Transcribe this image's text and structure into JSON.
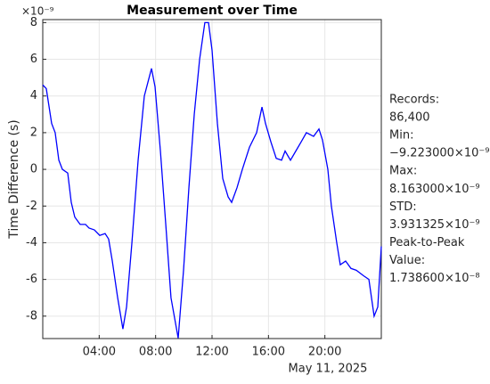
{
  "chart_data": {
    "type": "line",
    "title": "Measurement over Time",
    "ylabel": "Time Difference (s)",
    "y_exponent_label": "×10⁻⁹",
    "x_date_label": "May 11, 2025",
    "x": [
      0,
      0.25,
      0.63,
      0.88,
      1.14,
      1.39,
      1.77,
      2.02,
      2.27,
      2.65,
      3.03,
      3.28,
      3.66,
      4.04,
      4.42,
      4.67,
      4.93,
      5.31,
      5.68,
      5.94,
      6.32,
      6.76,
      7.2,
      7.71,
      7.96,
      8.34,
      8.72,
      9.09,
      9.6,
      9.98,
      10.36,
      10.74,
      11.12,
      11.49,
      11.75,
      12.0,
      12.38,
      12.76,
      13.14,
      13.39,
      13.77,
      14.15,
      14.65,
      15.16,
      15.54,
      15.79,
      16.17,
      16.55,
      16.93,
      17.18,
      17.56,
      17.94,
      18.32,
      18.69,
      19.2,
      19.58,
      19.83,
      20.21,
      20.46,
      20.84,
      21.09,
      21.47,
      21.85,
      22.23,
      22.74,
      23.12,
      23.49,
      23.75,
      24.0
    ],
    "series": [
      {
        "name": "Time Difference",
        "color": "#0000ff",
        "values": [
          4.6,
          4.4,
          2.5,
          2.0,
          0.5,
          0,
          -0.2,
          -1.8,
          -2.6,
          -3.0,
          -3.0,
          -3.2,
          -3.3,
          -3.6,
          -3.5,
          -3.8,
          -5.0,
          -7.0,
          -8.7,
          -7.5,
          -4.0,
          0.5,
          4.0,
          5.5,
          4.5,
          1.0,
          -3.0,
          -7.0,
          -9.2,
          -5.5,
          -1.0,
          3.0,
          6.0,
          8.0,
          8.0,
          6.5,
          2.5,
          -0.5,
          -1.5,
          -1.8,
          -1.0,
          0.0,
          1.2,
          2.0,
          3.4,
          2.5,
          1.5,
          0.6,
          0.5,
          1.0,
          0.5,
          1.0,
          1.5,
          2.0,
          1.8,
          2.2,
          1.6,
          0,
          -2.0,
          -4.0,
          -5.2,
          -5.0,
          -5.4,
          -5.5,
          -5.8,
          -6.0,
          -8.0,
          -7.5,
          -4.2
        ]
      }
    ],
    "xlim": [
      0,
      24
    ],
    "xticks": [
      {
        "value": 4,
        "label": "04:00"
      },
      {
        "value": 8,
        "label": "08:00"
      },
      {
        "value": 12,
        "label": "12:00"
      },
      {
        "value": 16,
        "label": "16:00"
      },
      {
        "value": 20,
        "label": "20:00"
      }
    ],
    "ylim": [
      -9.223,
      8.163
    ],
    "yticks": [
      -8,
      -6,
      -4,
      -2,
      0,
      2,
      4,
      6,
      8
    ],
    "grid": true,
    "annotations": [
      "Records:",
      "86,400",
      "Min:",
      "−9.223000×10⁻⁹",
      "Max:",
      "8.163000×10⁻⁹",
      "STD:",
      "3.931325×10⁻⁹",
      "Peak-to-Peak",
      "Value:",
      "1.738600×10⁻⁸"
    ]
  }
}
